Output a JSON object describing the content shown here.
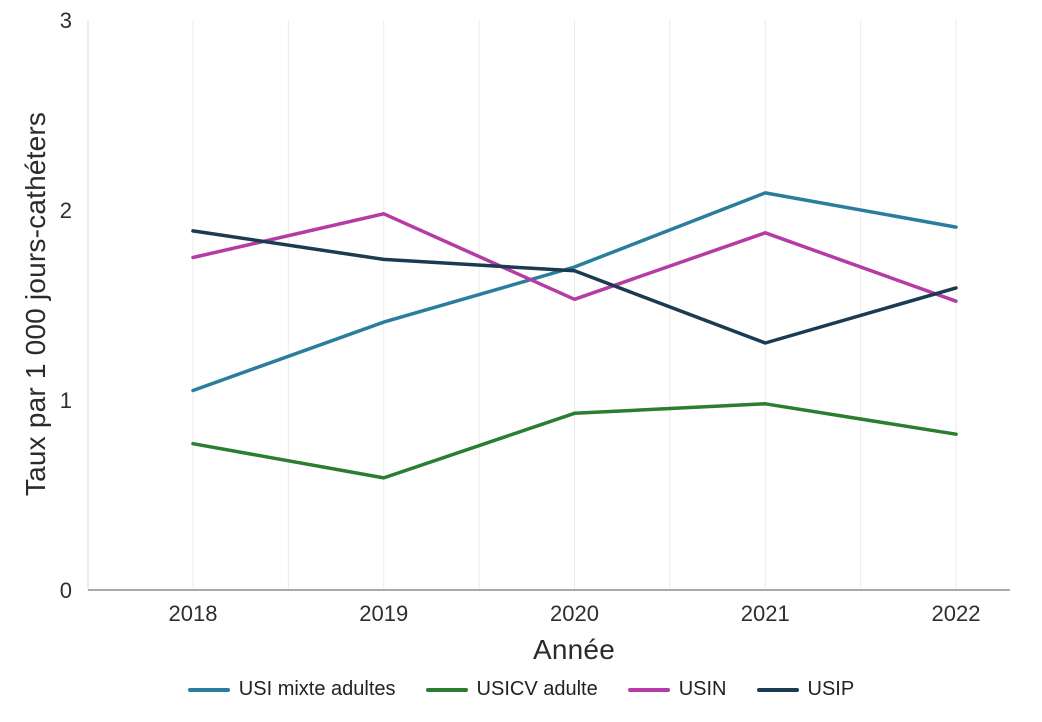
{
  "chart_data": {
    "type": "line",
    "x": [
      "2018",
      "2019",
      "2020",
      "2021",
      "2022"
    ],
    "series": [
      {
        "name": "USI mixte adultes",
        "color": "#2a7d9d",
        "values": [
          1.05,
          1.41,
          1.7,
          2.09,
          1.91
        ]
      },
      {
        "name": "USICV adulte",
        "color": "#2b7d2f",
        "values": [
          0.77,
          0.59,
          0.93,
          0.98,
          0.82
        ]
      },
      {
        "name": "USIN",
        "color": "#b63ba4",
        "values": [
          1.75,
          1.98,
          1.53,
          1.88,
          1.52
        ]
      },
      {
        "name": "USIP",
        "color": "#1a3b51",
        "values": [
          1.89,
          1.74,
          1.68,
          1.3,
          1.59
        ]
      }
    ],
    "xlabel": "Année",
    "ylabel": "Taux par 1 000 jours-cathéters",
    "ylim": [
      0,
      3
    ],
    "yticks": [
      0,
      1,
      2,
      3
    ],
    "grid": "vertical-light",
    "legend_position": "bottom"
  },
  "colors": {
    "gridline": "#ebebeb",
    "axis_left": "#dcdcdc",
    "axis_bottom": "#aaaaaa",
    "text": "#2b2b2b"
  }
}
